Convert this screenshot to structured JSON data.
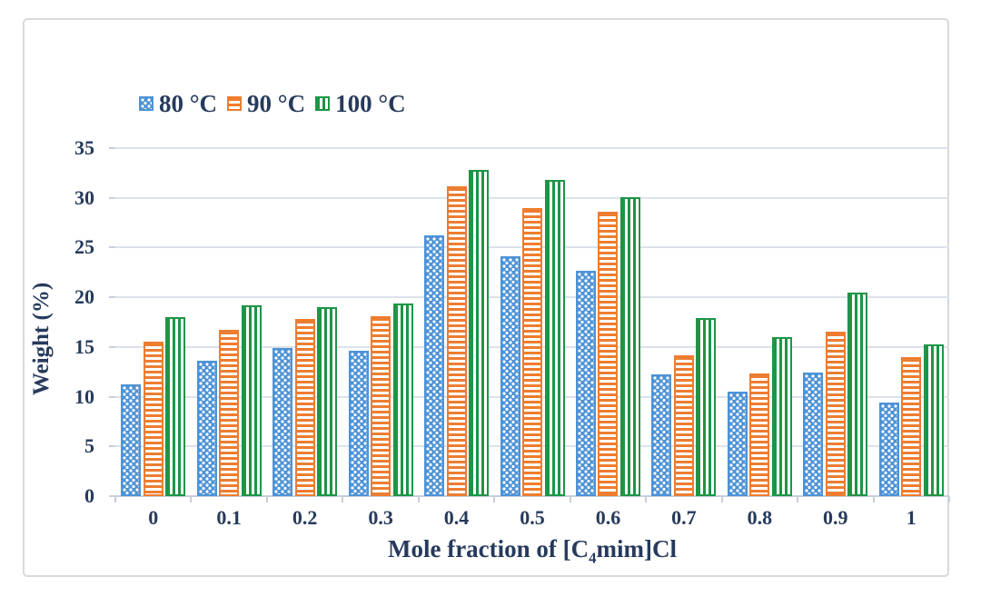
{
  "figure": {
    "background": "#ffffff",
    "frame_border_color": "#d9d9d9"
  },
  "chart_data": {
    "type": "bar",
    "title": "",
    "ylabel": "Weight (%)",
    "xlabel": "Mole fraction of [C4mim]Cl",
    "xlabel_parts": {
      "pre": "Mole fraction of [C",
      "sub": "4",
      "post": "mim]Cl"
    },
    "categories": [
      "0",
      "0.1",
      "0.2",
      "0.3",
      "0.4",
      "0.5",
      "0.6",
      "0.7",
      "0.8",
      "0.9",
      "1"
    ],
    "series": [
      {
        "name": "80 °C",
        "color": "#4E93D6",
        "pattern": "dots",
        "values": [
          11.2,
          13.6,
          14.9,
          14.6,
          26.2,
          24.1,
          22.7,
          12.2,
          10.5,
          12.4,
          9.4
        ]
      },
      {
        "name": "90 °C",
        "color": "#ED7D31",
        "pattern": "hlines",
        "values": [
          15.5,
          16.7,
          17.8,
          18.1,
          31.2,
          29.0,
          28.6,
          14.2,
          12.3,
          16.5,
          14.0
        ]
      },
      {
        "name": "100 °C",
        "color": "#1E9546",
        "pattern": "vlines",
        "values": [
          18.0,
          19.2,
          19.0,
          19.4,
          32.8,
          31.8,
          30.1,
          17.9,
          16.0,
          20.5,
          15.3
        ]
      }
    ],
    "ylim": [
      0,
      35
    ],
    "yticks": [
      "0",
      "5",
      "10",
      "15",
      "20",
      "25",
      "30",
      "35"
    ],
    "ytick_step": 5,
    "grid": true,
    "legend_position": "top-left",
    "text_color": "#263A5C",
    "grid_color": "#DCE2EC",
    "axis_color": "#C6CFDC"
  }
}
